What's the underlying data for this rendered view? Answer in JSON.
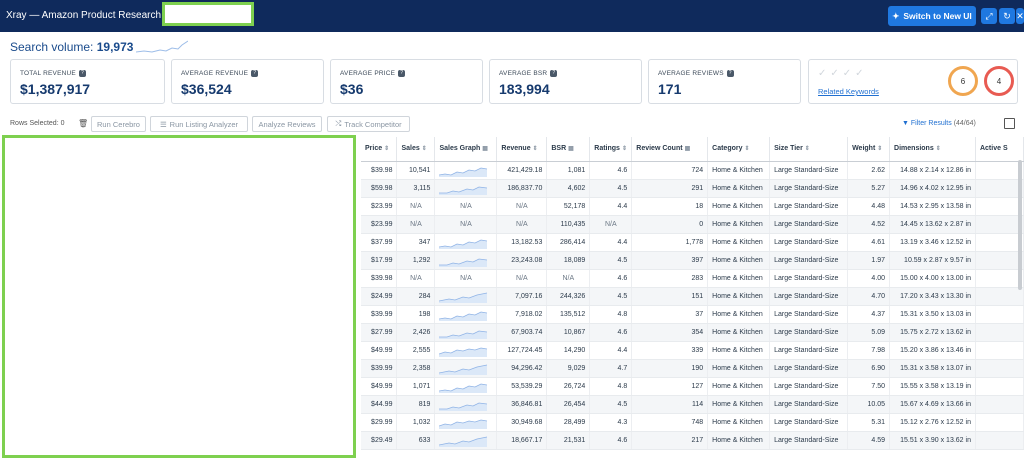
{
  "titlebar": {
    "title": "Xray — Amazon Product Research for",
    "switch_label": "Switch to New UI",
    "bg": "#0f2a5c",
    "accent": "#1f78e0"
  },
  "search": {
    "label": "Search volume:",
    "value": "19,973"
  },
  "stats": [
    {
      "label": "TOTAL REVENUE",
      "value": "$1,387,917"
    },
    {
      "label": "AVERAGE REVENUE",
      "value": "$36,524"
    },
    {
      "label": "AVERAGE PRICE",
      "value": "$36"
    },
    {
      "label": "AVERAGE BSR",
      "value": "183,994"
    },
    {
      "label": "AVERAGE REVIEWS",
      "value": "171"
    }
  ],
  "keywords": {
    "link": "Related Keywords",
    "score_a": "6",
    "score_b": "4"
  },
  "toolbar": {
    "rows_selected": "Rows Selected: 0",
    "run_cerebro": "Run Cerebro",
    "run_listing": "Run Listing Analyzer",
    "analyze_reviews": "Analyze Reviews",
    "track_competitor": "Track Competitor",
    "filter_label": "Filter Results",
    "filter_count": "(44/64)"
  },
  "table": {
    "columns": [
      "Price",
      "Sales",
      "Sales Graph",
      "Revenue",
      "BSR",
      "Ratings",
      "Review Count",
      "Category",
      "Size Tier",
      "Weight",
      "Dimensions",
      "Active S"
    ],
    "rows": [
      [
        "$39.98",
        "10,541",
        "",
        "421,429.18",
        "1,081",
        "4.6",
        "724",
        "Home & Kitchen",
        "Large Standard-Size",
        "2.62",
        "14.88 x 2.14 x 12.86 in"
      ],
      [
        "$59.98",
        "3,115",
        "",
        "186,837.70",
        "4,602",
        "4.5",
        "291",
        "Home & Kitchen",
        "Large Standard-Size",
        "5.27",
        "14.96 x 4.02 x 12.95 in"
      ],
      [
        "$23.99",
        "N/A",
        "N/A",
        "N/A",
        "52,178",
        "4.4",
        "18",
        "Home & Kitchen",
        "Large Standard-Size",
        "4.48",
        "14.53 x 2.95 x 13.58 in"
      ],
      [
        "$23.99",
        "N/A",
        "N/A",
        "N/A",
        "110,435",
        "N/A",
        "0",
        "Home & Kitchen",
        "Large Standard-Size",
        "4.52",
        "14.45 x 13.62 x 2.87 in"
      ],
      [
        "$37.99",
        "347",
        "",
        "13,182.53",
        "286,414",
        "4.4",
        "1,778",
        "Home & Kitchen",
        "Large Standard-Size",
        "4.61",
        "13.19 x 3.46 x 12.52 in"
      ],
      [
        "$17.99",
        "1,292",
        "",
        "23,243.08",
        "18,089",
        "4.5",
        "397",
        "Home & Kitchen",
        "Large Standard-Size",
        "1.97",
        "10.59 x 2.87 x 9.57 in"
      ],
      [
        "$39.98",
        "N/A",
        "N/A",
        "N/A",
        "N/A",
        "4.6",
        "283",
        "Home & Kitchen",
        "Large Standard-Size",
        "4.00",
        "15.00 x 4.00 x 13.00 in"
      ],
      [
        "$24.99",
        "284",
        "",
        "7,097.16",
        "244,326",
        "4.5",
        "151",
        "Home & Kitchen",
        "Large Standard-Size",
        "4.70",
        "17.20 x 3.43 x 13.30 in"
      ],
      [
        "$39.99",
        "198",
        "",
        "7,918.02",
        "135,512",
        "4.8",
        "37",
        "Home & Kitchen",
        "Large Standard-Size",
        "4.37",
        "15.31 x 3.50 x 13.03 in"
      ],
      [
        "$27.99",
        "2,426",
        "",
        "67,903.74",
        "10,867",
        "4.6",
        "354",
        "Home & Kitchen",
        "Large Standard-Size",
        "5.09",
        "15.75 x 2.72 x 13.62 in"
      ],
      [
        "$49.99",
        "2,555",
        "",
        "127,724.45",
        "14,290",
        "4.4",
        "339",
        "Home & Kitchen",
        "Large Standard-Size",
        "7.98",
        "15.20 x 3.86 x 13.46 in"
      ],
      [
        "$39.99",
        "2,358",
        "",
        "94,296.42",
        "9,029",
        "4.7",
        "190",
        "Home & Kitchen",
        "Large Standard-Size",
        "6.90",
        "15.31 x 3.58 x 13.07 in"
      ],
      [
        "$49.99",
        "1,071",
        "",
        "53,539.29",
        "26,724",
        "4.8",
        "127",
        "Home & Kitchen",
        "Large Standard-Size",
        "7.50",
        "15.55 x 3.58 x 13.19 in"
      ],
      [
        "$44.99",
        "819",
        "",
        "36,846.81",
        "26,454",
        "4.5",
        "114",
        "Home & Kitchen",
        "Large Standard-Size",
        "10.05",
        "15.67 x 4.69 x 13.66 in"
      ],
      [
        "$29.99",
        "1,032",
        "",
        "30,949.68",
        "28,499",
        "4.3",
        "748",
        "Home & Kitchen",
        "Large Standard-Size",
        "5.31",
        "15.12 x 2.76 x 12.52 in"
      ],
      [
        "$29.49",
        "633",
        "",
        "18,667.17",
        "21,531",
        "4.6",
        "217",
        "Home & Kitchen",
        "Large Standard-Size",
        "4.59",
        "15.51 x 3.90 x 13.62 in"
      ]
    ]
  }
}
